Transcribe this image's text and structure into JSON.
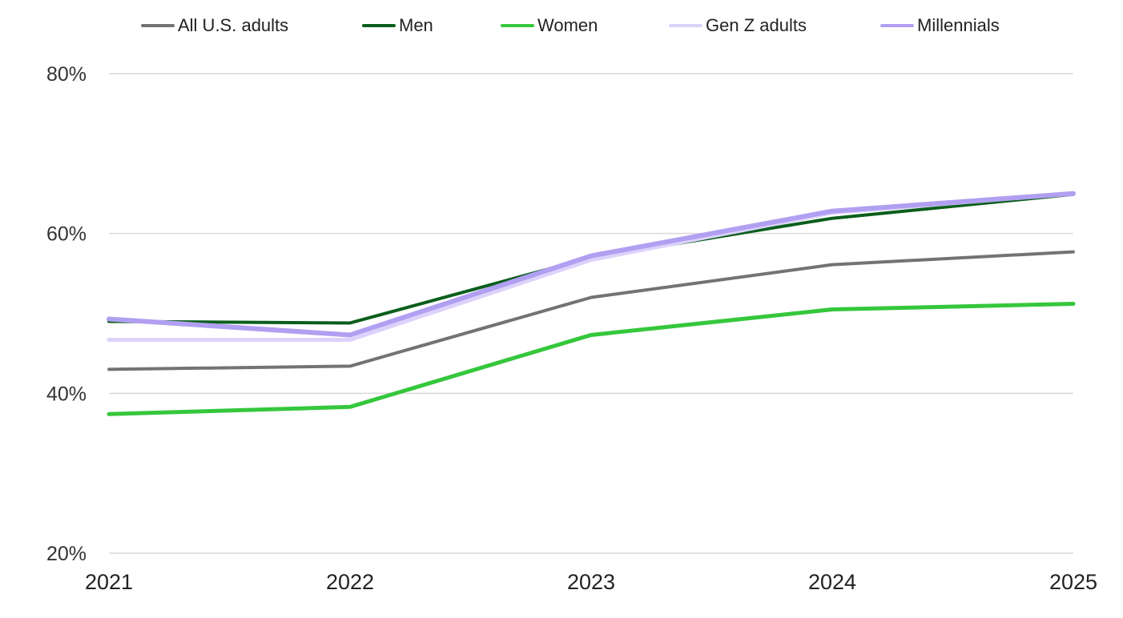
{
  "chart_data": {
    "type": "line",
    "title": "",
    "xlabel": "",
    "ylabel": "",
    "categories": [
      "2021",
      "2022",
      "2023",
      "2024",
      "2025"
    ],
    "ylim": [
      20,
      80
    ],
    "y_ticks": [
      20,
      40,
      60,
      80
    ],
    "y_tick_labels": [
      "20%",
      "40%",
      "60%",
      "80%"
    ],
    "grid": "horizontal",
    "legend_position": "top",
    "series": [
      {
        "name": "All U.S. adults",
        "color": "#737373",
        "values": [
          43.0,
          43.4,
          52.0,
          56.1,
          57.7
        ]
      },
      {
        "name": "Men",
        "color": "#0b5e1c",
        "values": [
          49.0,
          48.8,
          57.0,
          61.9,
          64.9
        ]
      },
      {
        "name": "Women",
        "color": "#35c73c",
        "values": [
          37.4,
          38.3,
          47.3,
          50.5,
          51.2
        ]
      },
      {
        "name": "Gen Z adults",
        "color": "#dcd2fb",
        "values": [
          46.7,
          46.7,
          56.7,
          62.6,
          65.0
        ]
      },
      {
        "name": "Millennials",
        "color": "#b19ff1",
        "values": [
          49.3,
          47.3,
          57.2,
          62.8,
          65.0
        ]
      }
    ]
  }
}
